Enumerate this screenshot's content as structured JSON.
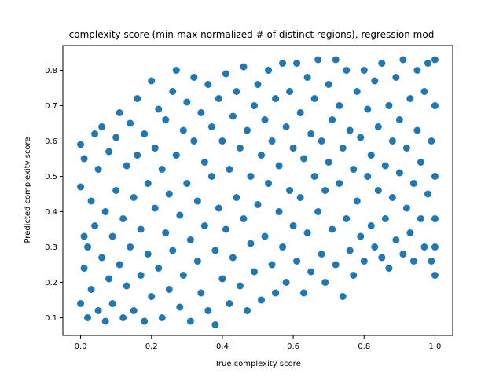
{
  "chart_data": {
    "type": "scatter",
    "title": "complexity score (min-max normalized # of distinct regions), regression mod",
    "xlabel": "True complexity score",
    "ylabel": "Predicted complexity score",
    "xlim": [
      -0.05,
      1.05
    ],
    "ylim": [
      0.05,
      0.87
    ],
    "xticks": [
      0.0,
      0.2,
      0.4,
      0.6,
      0.8,
      1.0
    ],
    "xtick_labels": [
      "0.0",
      "0.2",
      "0.4",
      "0.6",
      "0.8",
      "1.0"
    ],
    "yticks": [
      0.1,
      0.2,
      0.3,
      0.4,
      0.5,
      0.6,
      0.7,
      0.8
    ],
    "ytick_labels": [
      "0.1",
      "0.2",
      "0.3",
      "0.4",
      "0.5",
      "0.6",
      "0.7",
      "0.8"
    ],
    "grid": false,
    "legend": "none",
    "marker_color": "#1f77b4",
    "series": [
      {
        "values": [
          [
            0.0,
            0.14
          ],
          [
            0.0,
            0.59
          ],
          [
            0.0,
            0.47
          ],
          [
            0.01,
            0.55
          ],
          [
            0.01,
            0.33
          ],
          [
            0.01,
            0.24
          ],
          [
            0.02,
            0.1
          ],
          [
            0.02,
            0.3
          ],
          [
            0.03,
            0.43
          ],
          [
            0.03,
            0.18
          ],
          [
            0.04,
            0.62
          ],
          [
            0.04,
            0.36
          ],
          [
            0.05,
            0.12
          ],
          [
            0.05,
            0.52
          ],
          [
            0.06,
            0.27
          ],
          [
            0.06,
            0.64
          ],
          [
            0.07,
            0.09
          ],
          [
            0.07,
            0.4
          ],
          [
            0.08,
            0.21
          ],
          [
            0.08,
            0.57
          ],
          [
            0.09,
            0.33
          ],
          [
            0.09,
            0.14
          ],
          [
            0.1,
            0.61
          ],
          [
            0.1,
            0.46
          ],
          [
            0.11,
            0.25
          ],
          [
            0.11,
            0.68
          ],
          [
            0.12,
            0.1
          ],
          [
            0.12,
            0.38
          ],
          [
            0.13,
            0.53
          ],
          [
            0.13,
            0.19
          ],
          [
            0.14,
            0.65
          ],
          [
            0.14,
            0.3
          ],
          [
            0.15,
            0.44
          ],
          [
            0.15,
            0.12
          ],
          [
            0.16,
            0.72
          ],
          [
            0.16,
            0.56
          ],
          [
            0.17,
            0.22
          ],
          [
            0.17,
            0.35
          ],
          [
            0.18,
            0.62
          ],
          [
            0.18,
            0.09
          ],
          [
            0.19,
            0.48
          ],
          [
            0.19,
            0.28
          ],
          [
            0.2,
            0.77
          ],
          [
            0.2,
            0.16
          ],
          [
            0.21,
            0.58
          ],
          [
            0.21,
            0.41
          ],
          [
            0.22,
            0.69
          ],
          [
            0.22,
            0.24
          ],
          [
            0.23,
            0.1
          ],
          [
            0.23,
            0.52
          ],
          [
            0.24,
            0.34
          ],
          [
            0.24,
            0.66
          ],
          [
            0.25,
            0.18
          ],
          [
            0.25,
            0.45
          ],
          [
            0.26,
            0.74
          ],
          [
            0.26,
            0.29
          ],
          [
            0.27,
            0.8
          ],
          [
            0.27,
            0.56
          ],
          [
            0.28,
            0.13
          ],
          [
            0.28,
            0.39
          ],
          [
            0.29,
            0.63
          ],
          [
            0.29,
            0.22
          ],
          [
            0.3,
            0.71
          ],
          [
            0.3,
            0.48
          ],
          [
            0.31,
            0.32
          ],
          [
            0.31,
            0.09
          ],
          [
            0.32,
            0.78
          ],
          [
            0.32,
            0.6
          ],
          [
            0.33,
            0.26
          ],
          [
            0.33,
            0.43
          ],
          [
            0.34,
            0.68
          ],
          [
            0.34,
            0.17
          ],
          [
            0.35,
            0.54
          ],
          [
            0.35,
            0.36
          ],
          [
            0.36,
            0.76
          ],
          [
            0.36,
            0.12
          ],
          [
            0.37,
            0.5
          ],
          [
            0.37,
            0.64
          ],
          [
            0.38,
            0.29
          ],
          [
            0.38,
            0.08
          ],
          [
            0.39,
            0.72
          ],
          [
            0.39,
            0.41
          ],
          [
            0.4,
            0.21
          ],
          [
            0.4,
            0.6
          ],
          [
            0.41,
            0.79
          ],
          [
            0.41,
            0.35
          ],
          [
            0.42,
            0.52
          ],
          [
            0.42,
            0.14
          ],
          [
            0.43,
            0.67
          ],
          [
            0.43,
            0.27
          ],
          [
            0.44,
            0.44
          ],
          [
            0.44,
            0.74
          ],
          [
            0.45,
            0.19
          ],
          [
            0.45,
            0.58
          ],
          [
            0.46,
            0.38
          ],
          [
            0.46,
            0.81
          ],
          [
            0.47,
            0.12
          ],
          [
            0.47,
            0.63
          ],
          [
            0.48,
            0.31
          ],
          [
            0.48,
            0.5
          ],
          [
            0.49,
            0.7
          ],
          [
            0.49,
            0.23
          ],
          [
            0.5,
            0.42
          ],
          [
            0.5,
            0.76
          ],
          [
            0.51,
            0.15
          ],
          [
            0.51,
            0.56
          ],
          [
            0.52,
            0.66
          ],
          [
            0.52,
            0.33
          ],
          [
            0.53,
            0.8
          ],
          [
            0.53,
            0.48
          ],
          [
            0.54,
            0.25
          ],
          [
            0.54,
            0.6
          ],
          [
            0.55,
            0.72
          ],
          [
            0.55,
            0.17
          ],
          [
            0.56,
            0.4
          ],
          [
            0.56,
            0.53
          ],
          [
            0.57,
            0.82
          ],
          [
            0.57,
            0.3
          ],
          [
            0.58,
            0.64
          ],
          [
            0.58,
            0.2
          ],
          [
            0.59,
            0.46
          ],
          [
            0.59,
            0.74
          ],
          [
            0.6,
            0.36
          ],
          [
            0.6,
            0.58
          ],
          [
            0.61,
            0.82
          ],
          [
            0.61,
            0.26
          ],
          [
            0.62,
            0.68
          ],
          [
            0.62,
            0.44
          ],
          [
            0.63,
            0.17
          ],
          [
            0.63,
            0.55
          ],
          [
            0.64,
            0.78
          ],
          [
            0.64,
            0.34
          ],
          [
            0.65,
            0.62
          ],
          [
            0.65,
            0.23
          ],
          [
            0.66,
            0.5
          ],
          [
            0.66,
            0.72
          ],
          [
            0.67,
            0.4
          ],
          [
            0.67,
            0.83
          ],
          [
            0.68,
            0.28
          ],
          [
            0.68,
            0.6
          ],
          [
            0.69,
            0.46
          ],
          [
            0.69,
            0.2
          ],
          [
            0.7,
            0.76
          ],
          [
            0.7,
            0.54
          ],
          [
            0.71,
            0.35
          ],
          [
            0.71,
            0.66
          ],
          [
            0.72,
            0.83
          ],
          [
            0.72,
            0.25
          ],
          [
            0.73,
            0.48
          ],
          [
            0.73,
            0.7
          ],
          [
            0.74,
            0.16
          ],
          [
            0.74,
            0.58
          ],
          [
            0.75,
            0.38
          ],
          [
            0.75,
            0.8
          ],
          [
            0.76,
            0.29
          ],
          [
            0.76,
            0.63
          ],
          [
            0.77,
            0.52
          ],
          [
            0.77,
            0.22
          ],
          [
            0.78,
            0.74
          ],
          [
            0.78,
            0.43
          ],
          [
            0.79,
            0.33
          ],
          [
            0.79,
            0.61
          ],
          [
            0.8,
            0.8
          ],
          [
            0.8,
            0.26
          ],
          [
            0.81,
            0.5
          ],
          [
            0.81,
            0.69
          ],
          [
            0.82,
            0.36
          ],
          [
            0.82,
            0.56
          ],
          [
            0.83,
            0.77
          ],
          [
            0.83,
            0.3
          ],
          [
            0.84,
            0.46
          ],
          [
            0.84,
            0.64
          ],
          [
            0.85,
            0.27
          ],
          [
            0.85,
            0.82
          ],
          [
            0.86,
            0.53
          ],
          [
            0.86,
            0.38
          ],
          [
            0.87,
            0.7
          ],
          [
            0.87,
            0.24
          ],
          [
            0.88,
            0.6
          ],
          [
            0.88,
            0.44
          ],
          [
            0.89,
            0.78
          ],
          [
            0.89,
            0.32
          ],
          [
            0.9,
            0.51
          ],
          [
            0.9,
            0.66
          ],
          [
            0.91,
            0.28
          ],
          [
            0.91,
            0.83
          ],
          [
            0.92,
            0.41
          ],
          [
            0.92,
            0.58
          ],
          [
            0.93,
            0.72
          ],
          [
            0.93,
            0.34
          ],
          [
            0.94,
            0.48
          ],
          [
            0.94,
            0.26
          ],
          [
            0.95,
            0.8
          ],
          [
            0.95,
            0.63
          ],
          [
            0.96,
            0.38
          ],
          [
            0.96,
            0.54
          ],
          [
            0.97,
            0.74
          ],
          [
            0.97,
            0.3
          ],
          [
            0.98,
            0.45
          ],
          [
            0.98,
            0.82
          ],
          [
            0.99,
            0.6
          ],
          [
            0.99,
            0.26
          ],
          [
            1.0,
            0.83
          ],
          [
            1.0,
            0.22
          ],
          [
            1.0,
            0.5
          ],
          [
            1.0,
            0.7
          ],
          [
            1.0,
            0.38
          ],
          [
            1.0,
            0.3
          ]
        ]
      }
    ]
  }
}
